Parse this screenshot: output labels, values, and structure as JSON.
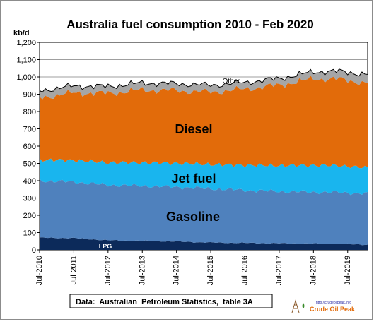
{
  "chart_data": {
    "type": "area",
    "stacked": true,
    "title": "Australia fuel consumption 2010 - Feb 2020",
    "ylabel": "kb/d",
    "ylim": [
      0,
      1200
    ],
    "yticks": [
      "0",
      "100",
      "200",
      "300",
      "400",
      "500",
      "600",
      "700",
      "800",
      "900",
      "1,000",
      "1,100",
      "1,200"
    ],
    "xtick_labels": [
      "Jul-2010",
      "Jul-2011",
      "Jul-2012",
      "Jul-2013",
      "Jul-2014",
      "Jul-2015",
      "Jul-2016",
      "Jul-2017",
      "Jul-2018",
      "Jul-2019"
    ],
    "x_start": "Jul-2010",
    "x_end": "Feb-2020",
    "grid": true,
    "colors": {
      "LPG": "#0c2a5a",
      "Gasoline": "#4f81bd",
      "Jet fuel": "#19b5ee",
      "Diesel": "#e26b0a",
      "Other": "#a6a6a6",
      "top_line": "#000000"
    },
    "series_labels": [
      "LPG",
      "Gasoline",
      "Jet fuel",
      "Diesel",
      "Other"
    ],
    "series": [
      {
        "name": "LPG",
        "anchors": [
          [
            0,
            70
          ],
          [
            12,
            68
          ],
          [
            24,
            55
          ],
          [
            36,
            52
          ],
          [
            48,
            48
          ],
          [
            60,
            42
          ],
          [
            72,
            40
          ],
          [
            84,
            38
          ],
          [
            96,
            36
          ],
          [
            104,
            35
          ],
          [
            115,
            30
          ]
        ]
      },
      {
        "name": "Gasoline",
        "anchors": [
          [
            0,
            330
          ],
          [
            12,
            325
          ],
          [
            24,
            320
          ],
          [
            36,
            318
          ],
          [
            48,
            315
          ],
          [
            60,
            312
          ],
          [
            72,
            305
          ],
          [
            84,
            300
          ],
          [
            96,
            298
          ],
          [
            104,
            298
          ],
          [
            115,
            295
          ]
        ]
      },
      {
        "name": "Jet fuel",
        "anchors": [
          [
            0,
            120
          ],
          [
            12,
            125
          ],
          [
            24,
            130
          ],
          [
            36,
            135
          ],
          [
            48,
            138
          ],
          [
            60,
            140
          ],
          [
            72,
            145
          ],
          [
            84,
            150
          ],
          [
            96,
            155
          ],
          [
            104,
            155
          ],
          [
            115,
            150
          ]
        ]
      },
      {
        "name": "Diesel",
        "anchors": [
          [
            0,
            360
          ],
          [
            12,
            390
          ],
          [
            24,
            400
          ],
          [
            36,
            420
          ],
          [
            48,
            420
          ],
          [
            60,
            418
          ],
          [
            72,
            440
          ],
          [
            84,
            465
          ],
          [
            96,
            500
          ],
          [
            104,
            500
          ],
          [
            115,
            490
          ]
        ]
      },
      {
        "name": "Other",
        "anchors": [
          [
            0,
            40
          ],
          [
            12,
            40
          ],
          [
            24,
            40
          ],
          [
            36,
            40
          ],
          [
            48,
            40
          ],
          [
            60,
            40
          ],
          [
            72,
            38
          ],
          [
            84,
            38
          ],
          [
            96,
            40
          ],
          [
            104,
            45
          ],
          [
            115,
            50
          ]
        ]
      }
    ],
    "source_note": "Data:  Australian  Petroleum Statistics,  table 3A",
    "logo_url": "http://crudeoilpeak.info",
    "logo_text": "Crude Oil Peak"
  }
}
